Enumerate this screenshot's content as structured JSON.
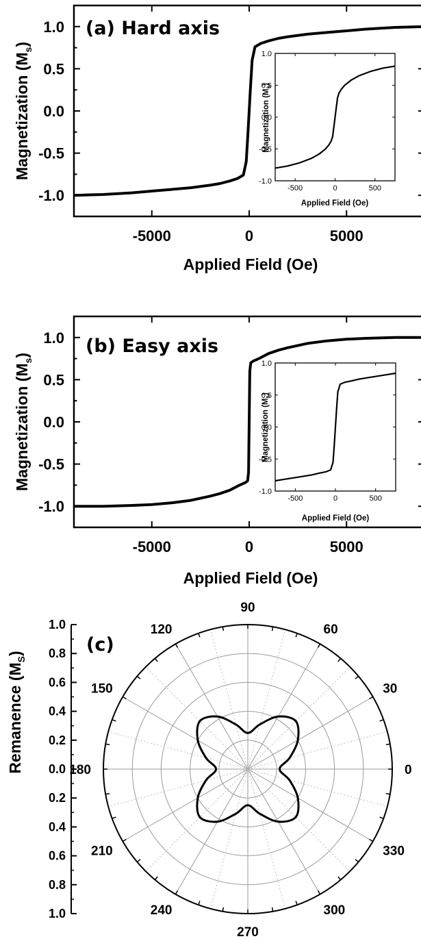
{
  "chart_data": [
    {
      "id": "a",
      "type": "line",
      "panel_label": "(a) Hard axis",
      "xlabel": "Applied Field (Oe)",
      "ylabel": "Magnetization (M",
      "ylabel_sub": "s",
      "ylabel_close": ")",
      "xlim": [
        -9000,
        9000
      ],
      "ylim": [
        -1.25,
        1.25
      ],
      "xticks": [
        -5000,
        0,
        5000
      ],
      "xtick_labels": [
        "-5000",
        "0",
        "5000"
      ],
      "yticks": [
        -1.0,
        -0.5,
        0.0,
        0.5,
        1.0
      ],
      "ytick_labels": [
        "-1.0",
        "-0.5",
        "0.0",
        "0.5",
        "1.0"
      ],
      "series": [
        {
          "x": [
            -9000,
            -7500,
            -6000,
            -5000,
            -4000,
            -3000,
            -2000,
            -1500,
            -1000,
            -600,
            -300,
            -150,
            -60,
            0,
            60,
            150,
            300,
            600,
            1000,
            1500,
            2000,
            3000,
            4000,
            5000,
            6000,
            7500,
            9000
          ],
          "y": [
            -1.0,
            -0.99,
            -0.97,
            -0.95,
            -0.93,
            -0.91,
            -0.88,
            -0.86,
            -0.83,
            -0.8,
            -0.76,
            -0.6,
            -0.25,
            0.0,
            0.25,
            0.6,
            0.76,
            0.8,
            0.83,
            0.86,
            0.88,
            0.91,
            0.93,
            0.95,
            0.97,
            0.99,
            1.0
          ]
        }
      ],
      "inset": {
        "xlabel": "Applied Field (Oe)",
        "ylabel": "Magnetization (M",
        "ylabel_sub": "s",
        "ylabel_close": ")",
        "xlim": [
          -750,
          750
        ],
        "ylim": [
          -1.0,
          1.0
        ],
        "xticks": [
          -500,
          0,
          500
        ],
        "xtick_labels": [
          "-500",
          "0",
          "500"
        ],
        "yticks": [
          -1.0,
          -0.5,
          0.0,
          0.5,
          1.0
        ],
        "ytick_labels": [
          "-1.0",
          "-0.5",
          "0.0",
          "0.5",
          "1.0"
        ],
        "series": [
          {
            "x": [
              -750,
              -600,
              -450,
              -300,
              -200,
              -120,
              -80,
              -50,
              -30,
              0,
              30,
              50,
              80,
              120,
              200,
              300,
              450,
              600,
              750
            ],
            "y": [
              -0.8,
              -0.77,
              -0.72,
              -0.65,
              -0.58,
              -0.5,
              -0.44,
              -0.38,
              -0.3,
              0.0,
              0.3,
              0.38,
              0.44,
              0.5,
              0.58,
              0.65,
              0.72,
              0.77,
              0.8
            ]
          }
        ]
      }
    },
    {
      "id": "b",
      "type": "line",
      "panel_label": "(b) Easy axis",
      "xlabel": "Applied Field (Oe)",
      "ylabel": "Magnetization (M",
      "ylabel_sub": "s",
      "ylabel_close": ")",
      "xlim": [
        -9000,
        9000
      ],
      "ylim": [
        -1.25,
        1.25
      ],
      "xticks": [
        -5000,
        0,
        5000
      ],
      "xtick_labels": [
        "-5000",
        "0",
        "5000"
      ],
      "yticks": [
        -1.0,
        -0.5,
        0.0,
        0.5,
        1.0
      ],
      "ytick_labels": [
        "-1.0",
        "-0.5",
        "0.0",
        "0.5",
        "1.0"
      ],
      "series": [
        {
          "x": [
            -9000,
            -7500,
            -6000,
            -5000,
            -4000,
            -3000,
            -2000,
            -1500,
            -1000,
            -500,
            -200,
            -80,
            -30,
            0,
            30,
            80,
            200,
            500,
            1000,
            1500,
            2000,
            3000,
            4000,
            5000,
            6000,
            7500,
            9000
          ],
          "y": [
            -1.0,
            -1.0,
            -0.99,
            -0.98,
            -0.96,
            -0.93,
            -0.88,
            -0.85,
            -0.81,
            -0.75,
            -0.72,
            -0.7,
            -0.6,
            0.0,
            0.6,
            0.7,
            0.72,
            0.75,
            0.81,
            0.85,
            0.88,
            0.93,
            0.96,
            0.98,
            0.99,
            1.0,
            1.0
          ]
        }
      ],
      "inset": {
        "xlabel": "Applied Field (Oe)",
        "ylabel": "Magnetization (M",
        "ylabel_sub": "s",
        "ylabel_close": ")",
        "xlim": [
          -750,
          750
        ],
        "ylim": [
          -1.0,
          1.0
        ],
        "xticks": [
          -500,
          0,
          500
        ],
        "xtick_labels": [
          "-500",
          "0",
          "500"
        ],
        "yticks": [
          -1.0,
          -0.5,
          0.0,
          0.5,
          1.0
        ],
        "ytick_labels": [
          "-1.0",
          "-0.5",
          "0.0",
          "0.5",
          "1.0"
        ],
        "series": [
          {
            "x": [
              -750,
              -600,
              -450,
              -300,
              -200,
              -120,
              -60,
              -30,
              -15,
              0,
              15,
              30,
              60,
              120,
              200,
              300,
              450,
              600,
              750
            ],
            "y": [
              -0.84,
              -0.81,
              -0.78,
              -0.75,
              -0.72,
              -0.7,
              -0.67,
              -0.55,
              -0.3,
              0.0,
              0.3,
              0.55,
              0.67,
              0.7,
              0.72,
              0.75,
              0.78,
              0.81,
              0.84
            ]
          }
        ]
      }
    },
    {
      "id": "c",
      "type": "polar",
      "panel_label": "(c)",
      "rlabel": "Remanence (M",
      "rlabel_sub": "S",
      "rlabel_close": ")",
      "rlim": [
        0,
        1.0
      ],
      "rticks": [
        0.0,
        0.2,
        0.4,
        0.6,
        0.8,
        1.0
      ],
      "rtick_labels_upper": [
        "1.0",
        "0.8",
        "0.6",
        "0.4",
        "0.2"
      ],
      "rtick_label_center": "0.0",
      "rtick_labels_lower": [
        "0.2",
        "0.4",
        "0.6",
        "0.8",
        "1.0"
      ],
      "angle_labels": [
        "0",
        "30",
        "60",
        "90",
        "120",
        "150",
        "180",
        "210",
        "240",
        "270",
        "300",
        "330"
      ],
      "grid": true,
      "series": [
        {
          "theta_deg": [
            0,
            15,
            30,
            45,
            60,
            75,
            90,
            105,
            120,
            135,
            150,
            165,
            180,
            195,
            210,
            225,
            240,
            255,
            270,
            285,
            300,
            315,
            330,
            345,
            360
          ],
          "r": [
            0.22,
            0.3,
            0.4,
            0.47,
            0.42,
            0.32,
            0.25,
            0.32,
            0.42,
            0.47,
            0.4,
            0.3,
            0.22,
            0.3,
            0.4,
            0.47,
            0.42,
            0.32,
            0.25,
            0.32,
            0.42,
            0.47,
            0.4,
            0.3,
            0.22
          ]
        }
      ]
    }
  ]
}
